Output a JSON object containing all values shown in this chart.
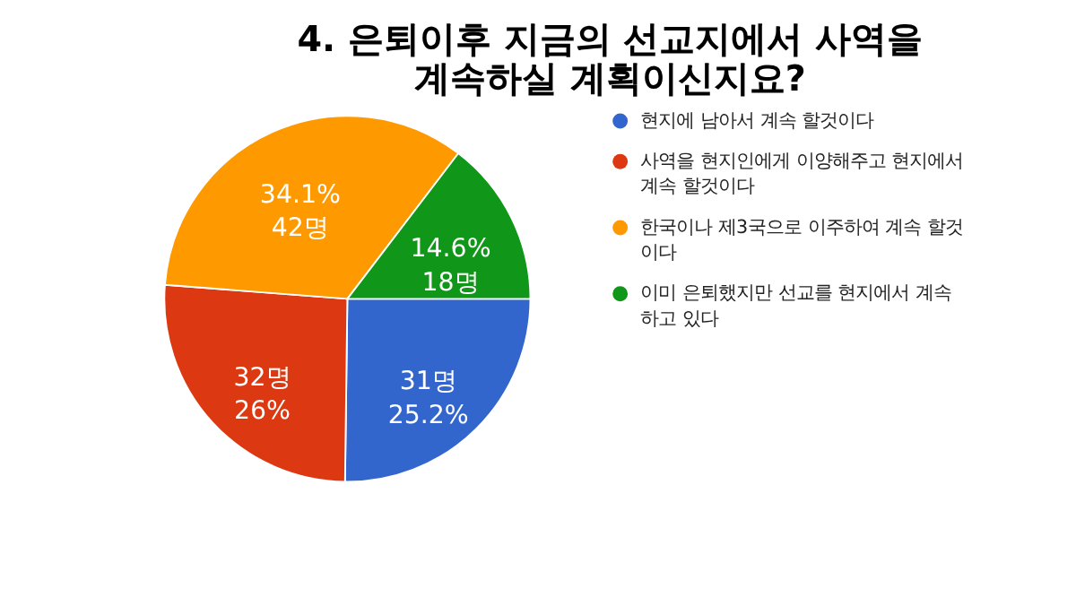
{
  "chart_data": {
    "type": "pie",
    "title": "4. 은퇴이후 지금의 선교지에서 사역을\n계속하실 계획이신지요?",
    "categories": [
      "현지에 남아서 계속 할것이다",
      "사역을 현지인에게 이양해주고 현지에서 계속 할것이다",
      "한국이나 제3국으로 이주하여 계속 할것이다",
      "이미 은퇴했지만 선교를 현지에서 계속 하고 있다"
    ],
    "values": [
      31,
      32,
      42,
      18
    ],
    "colors": [
      "#3366cc",
      "#dc3912",
      "#ff9900",
      "#109618"
    ],
    "value_labels": [
      "31명\n25.2%",
      "32명\n26%",
      "34.1%\n42명",
      "14.6%\n18명"
    ],
    "legend": "right"
  }
}
